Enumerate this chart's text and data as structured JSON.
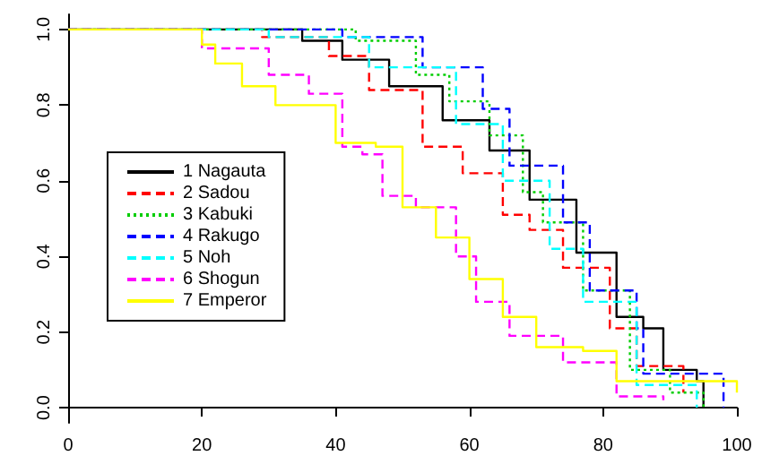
{
  "chart_data": {
    "type": "step",
    "xlim": [
      0,
      100
    ],
    "xticks": [
      0,
      20,
      40,
      60,
      80,
      100
    ],
    "ylim": [
      -0.04,
      1.04
    ],
    "yticks": [
      {
        "value": 0,
        "label": "0.0"
      },
      0.2,
      0.4,
      0.6,
      0.8,
      {
        "value": 1,
        "label": "1.0"
      }
    ],
    "grid": false,
    "legend": "left",
    "series": [
      {
        "name": "1 Nagauta",
        "color": "#000000",
        "line_style": "solid",
        "x": [
          0,
          35,
          41,
          48,
          56,
          63,
          69,
          76,
          82,
          86,
          89,
          94,
          95
        ],
        "values": [
          1,
          0.97,
          0.92,
          0.85,
          0.76,
          0.68,
          0.55,
          0.41,
          0.24,
          0.21,
          0.1,
          0.07,
          0
        ]
      },
      {
        "name": "2 Sadou",
        "color": "#ff0000",
        "line_style": "dashed",
        "x": [
          0,
          29,
          39,
          45,
          53,
          59,
          65,
          69,
          74,
          81,
          85,
          92
        ],
        "values": [
          1,
          0.98,
          0.93,
          0.84,
          0.69,
          0.62,
          0.51,
          0.47,
          0.37,
          0.21,
          0.11,
          0.04
        ]
      },
      {
        "name": "3 Kabuki",
        "color": "#00cd00",
        "line_style": "dotted",
        "x": [
          0,
          43,
          52,
          57,
          63,
          68,
          71,
          77,
          84,
          90,
          95
        ],
        "values": [
          1,
          0.97,
          0.88,
          0.81,
          0.72,
          0.57,
          0.49,
          0.31,
          0.1,
          0.04,
          0
        ]
      },
      {
        "name": "4 Rakugo",
        "color": "#0000ff",
        "line_style": "dashed",
        "x": [
          0,
          41,
          53,
          62,
          66,
          74,
          78,
          85,
          86,
          98
        ],
        "values": [
          1,
          0.98,
          0.9,
          0.79,
          0.64,
          0.49,
          0.31,
          0.21,
          0.09,
          0
        ]
      },
      {
        "name": "5 Noh",
        "color": "#00ffff",
        "line_style": "dashed",
        "x": [
          0,
          30,
          45,
          58,
          65,
          72,
          77,
          85,
          94
        ],
        "values": [
          1,
          0.98,
          0.9,
          0.75,
          0.6,
          0.42,
          0.28,
          0.06,
          0
        ]
      },
      {
        "name": "6 Shogun",
        "color": "#ff00ff",
        "line_style": "dashed",
        "x": [
          0,
          20,
          30,
          36,
          41,
          44,
          47,
          52,
          58,
          61,
          66,
          74,
          82,
          89
        ],
        "values": [
          1,
          0.95,
          0.88,
          0.83,
          0.69,
          0.67,
          0.56,
          0.53,
          0.4,
          0.28,
          0.19,
          0.12,
          0.03,
          0.02
        ]
      },
      {
        "name": "7 Emperor",
        "color": "#ffff00",
        "line_style": "solid",
        "x": [
          0,
          20,
          22,
          26,
          31,
          40,
          46,
          50,
          55,
          60,
          65,
          70,
          77,
          82,
          100
        ],
        "values": [
          1,
          0.96,
          0.91,
          0.85,
          0.8,
          0.7,
          0.69,
          0.53,
          0.45,
          0.34,
          0.24,
          0.16,
          0.15,
          0.07,
          0.04
        ]
      }
    ]
  }
}
